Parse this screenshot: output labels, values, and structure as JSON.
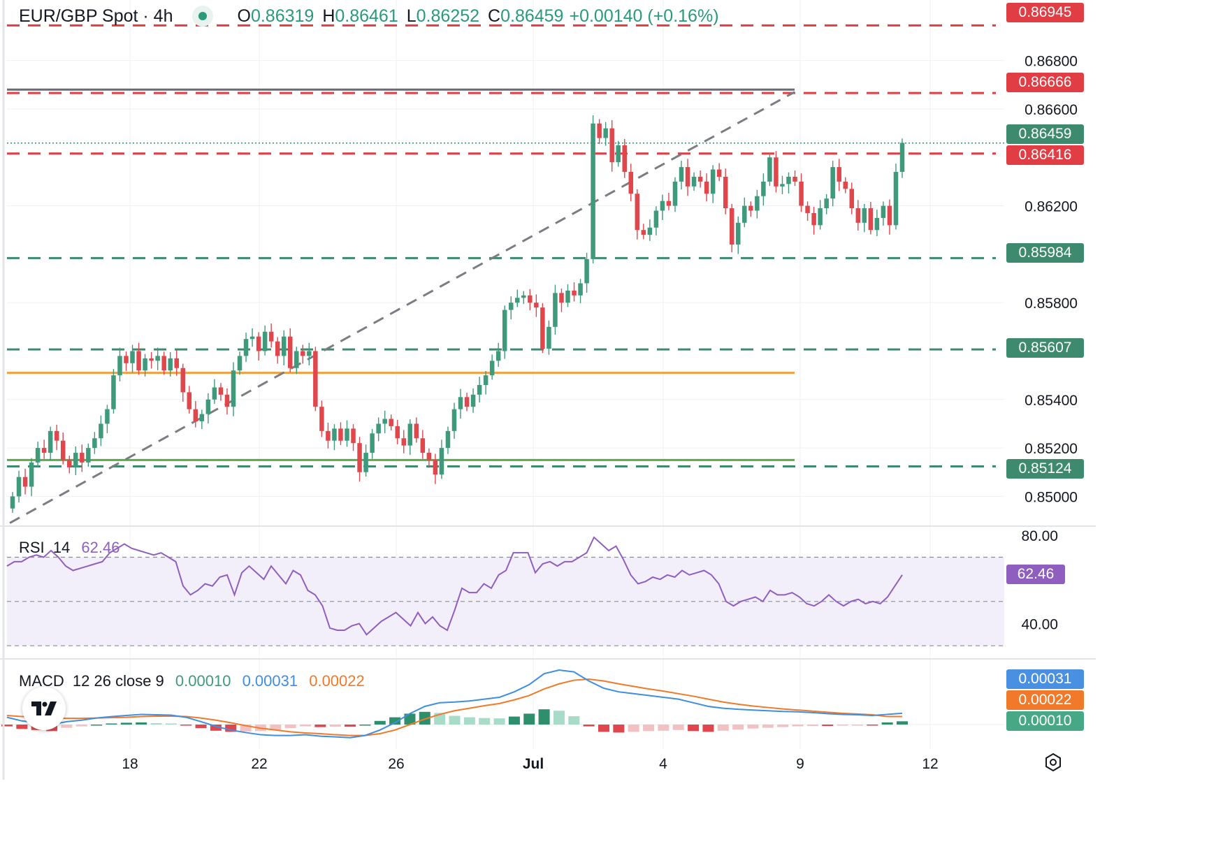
{
  "header": {
    "symbol": "EUR/GBP Spot · 4h",
    "open_key": "O",
    "open": "0.86319",
    "high_key": "H",
    "high": "0.86461",
    "low_key": "L",
    "low": "0.86252",
    "close_key": "C",
    "close": "0.86459",
    "change": "+0.00140 (+0.16%)"
  },
  "price_tags": [
    {
      "text": "0.86945",
      "value": 0.86945,
      "color": "#e03d44"
    },
    {
      "text": "0.86666",
      "value": 0.86666,
      "color": "#e03d44"
    },
    {
      "text": "0.86459",
      "value": 0.86459,
      "color": "#3d8a6f"
    },
    {
      "text": "0.86416",
      "value": 0.86416,
      "color": "#e03d44"
    },
    {
      "text": "0.85984",
      "value": 0.85984,
      "color": "#3d8a6f"
    },
    {
      "text": "0.85607",
      "value": 0.85607,
      "color": "#3d8a6f"
    },
    {
      "text": "0.85124",
      "value": 0.85124,
      "color": "#3d8a6f"
    }
  ],
  "rsi": {
    "label": "RSI",
    "period": "14",
    "value": "62.46",
    "tag": "62.46",
    "upper": 70,
    "mid": 50,
    "lower": 30
  },
  "macd": {
    "label": "MACD",
    "params": "12 26 close 9",
    "hist": "0.00010",
    "macd": "0.00031",
    "signal": "0.00022",
    "tag_macd": "0.00031",
    "tag_signal": "0.00022",
    "tag_hist": "0.00010"
  },
  "colors": {
    "up": "#3f9a7c",
    "down": "#e0474d",
    "rsi": "#8f5fbf",
    "macd": "#3f8ee0",
    "signal": "#f07a2a"
  },
  "chart_data": {
    "type": "candlestick",
    "title": "EUR/GBP Spot · 4h",
    "price_axis": {
      "ticks": [
        "0.86800",
        "0.86600",
        "0.86200",
        "0.85800",
        "0.85400",
        "0.85200",
        "0.85000"
      ],
      "range": [
        0.8488,
        0.8705
      ]
    },
    "rsi_axis": {
      "ticks": [
        "80.00",
        "40.00"
      ],
      "range": [
        25,
        85
      ]
    },
    "time_axis": {
      "ticks": [
        "18",
        "22",
        "26",
        "Jul",
        "4",
        "9",
        "12"
      ]
    },
    "horizontal_lines": [
      {
        "value": 0.86945,
        "style": "dashed",
        "color": "#e03d44"
      },
      {
        "value": 0.86666,
        "style": "dashed",
        "color": "#e03d44"
      },
      {
        "value": 0.86416,
        "style": "dashed",
        "color": "#e03d44"
      },
      {
        "value": 0.85984,
        "style": "dashed",
        "color": "#3d8a6f"
      },
      {
        "value": 0.85607,
        "style": "dashed",
        "color": "#3d8a6f"
      },
      {
        "value": 0.85124,
        "style": "dashed",
        "color": "#3d8a6f"
      },
      {
        "value": 0.86459,
        "style": "dotted",
        "color": "#3d8a6f"
      },
      {
        "value": 0.8668,
        "style": "solid",
        "color": "#666b75"
      },
      {
        "value": 0.8551,
        "style": "solid",
        "color": "#f0a040"
      },
      {
        "value": 0.8515,
        "style": "solid",
        "color": "#5ca94a"
      }
    ],
    "trendline": {
      "from_close_index": 0,
      "from_value": 0.8489,
      "to_value": 0.8667,
      "style": "dashed",
      "color": "#777"
    },
    "closes": [
      0.85,
      0.8508,
      0.8504,
      0.8514,
      0.852,
      0.8518,
      0.8527,
      0.8523,
      0.8515,
      0.8512,
      0.8518,
      0.8514,
      0.852,
      0.8524,
      0.853,
      0.8536,
      0.855,
      0.8558,
      0.8555,
      0.856,
      0.8552,
      0.8557,
      0.8556,
      0.8558,
      0.8552,
      0.8557,
      0.8553,
      0.8543,
      0.8536,
      0.8531,
      0.8534,
      0.854,
      0.8545,
      0.8542,
      0.8537,
      0.8552,
      0.8558,
      0.8565,
      0.8566,
      0.856,
      0.8568,
      0.8564,
      0.8558,
      0.8566,
      0.8553,
      0.856,
      0.8558,
      0.856,
      0.8537,
      0.8527,
      0.8523,
      0.8528,
      0.8523,
      0.8528,
      0.8522,
      0.851,
      0.8518,
      0.8526,
      0.853,
      0.8532,
      0.8529,
      0.8524,
      0.8521,
      0.853,
      0.8524,
      0.8518,
      0.8515,
      0.8509,
      0.852,
      0.8527,
      0.8536,
      0.8541,
      0.8537,
      0.8542,
      0.8546,
      0.855,
      0.8556,
      0.856,
      0.8577,
      0.858,
      0.8582,
      0.8583,
      0.858,
      0.8578,
      0.8561,
      0.857,
      0.8584,
      0.858,
      0.8585,
      0.8583,
      0.8588,
      0.8598,
      0.8654,
      0.8648,
      0.8652,
      0.8638,
      0.8645,
      0.8634,
      0.8625,
      0.861,
      0.8608,
      0.8611,
      0.8618,
      0.8622,
      0.862,
      0.863,
      0.8636,
      0.8628,
      0.8632,
      0.863,
      0.8625,
      0.8635,
      0.8632,
      0.8619,
      0.8604,
      0.8613,
      0.862,
      0.8618,
      0.8624,
      0.863,
      0.864,
      0.8628,
      0.8629,
      0.8632,
      0.863,
      0.862,
      0.8617,
      0.8612,
      0.8619,
      0.8623,
      0.8636,
      0.863,
      0.8627,
      0.8619,
      0.8613,
      0.8619,
      0.861,
      0.8615,
      0.862,
      0.8612,
      0.8634,
      0.8646
    ],
    "rsi_values": [
      66,
      68,
      68,
      70,
      71,
      70,
      73,
      70,
      66,
      64,
      65,
      66,
      67,
      68,
      72,
      74,
      76,
      74,
      73,
      72,
      71,
      72,
      70,
      68,
      57,
      53,
      55,
      58,
      57,
      61,
      62,
      53,
      63,
      66,
      63,
      60,
      66,
      62,
      58,
      64,
      62,
      55,
      53,
      48,
      38,
      37,
      37,
      39,
      40,
      35,
      38,
      41,
      43,
      45,
      42,
      39,
      45,
      40,
      43,
      39,
      37,
      46,
      56,
      54,
      54,
      58,
      56,
      62,
      64,
      72,
      72,
      72,
      63,
      67,
      68,
      66,
      68,
      68,
      70,
      72,
      79,
      76,
      73,
      75,
      69,
      62,
      58,
      59,
      61,
      60,
      62,
      61,
      64,
      62,
      63,
      64,
      62,
      58,
      50,
      48,
      50,
      51,
      52,
      50,
      55,
      53,
      53,
      54,
      52,
      49,
      48,
      50,
      53,
      50,
      48,
      50,
      51,
      49,
      50,
      49,
      52,
      57,
      62
    ],
    "macd_values": [
      0.0002,
      0.0001,
      5e-05,
      0.0,
      8e-05,
      0.00012,
      0.00018,
      0.00022,
      0.00025,
      0.00028,
      0.00027,
      0.00026,
      0.0002,
      8e-05,
      -5e-05,
      -0.00015,
      -0.00022,
      -0.00028,
      -0.0003,
      -0.0003,
      -0.00028,
      -0.00032,
      -0.00034,
      -0.00036,
      -0.0003,
      -0.00015,
      5e-05,
      0.0003,
      0.0005,
      0.0006,
      0.00062,
      0.00065,
      0.0007,
      0.00075,
      0.0009,
      0.0011,
      0.0014,
      0.0015,
      0.00145,
      0.0012,
      0.001,
      0.0009,
      0.00085,
      0.0008,
      0.00075,
      0.0007,
      0.0006,
      0.0005,
      0.00045,
      0.00042,
      0.0004,
      0.00038,
      0.00036,
      0.00035,
      0.00033,
      0.0003,
      0.00028,
      0.00027,
      0.00025,
      0.00028,
      0.00031
    ],
    "signal_values": [
      0.00025,
      0.00022,
      0.0002,
      0.00018,
      0.00017,
      0.00017,
      0.00018,
      0.00019,
      0.0002,
      0.00022,
      0.00023,
      0.00023,
      0.00022,
      0.00018,
      0.00012,
      5e-05,
      -3e-05,
      -0.0001,
      -0.00015,
      -0.0002,
      -0.00023,
      -0.00025,
      -0.00028,
      -0.0003,
      -0.0003,
      -0.00025,
      -0.00015,
      0.0,
      0.00015,
      0.00028,
      0.00038,
      0.00045,
      0.00052,
      0.00058,
      0.00068,
      0.0008,
      0.00098,
      0.00112,
      0.00122,
      0.00125,
      0.0012,
      0.00112,
      0.00105,
      0.00098,
      0.00092,
      0.00085,
      0.00078,
      0.0007,
      0.00062,
      0.00056,
      0.00051,
      0.00047,
      0.00043,
      0.0004,
      0.00037,
      0.00034,
      0.00031,
      0.00029,
      0.00027,
      0.00022,
      0.00022
    ]
  }
}
